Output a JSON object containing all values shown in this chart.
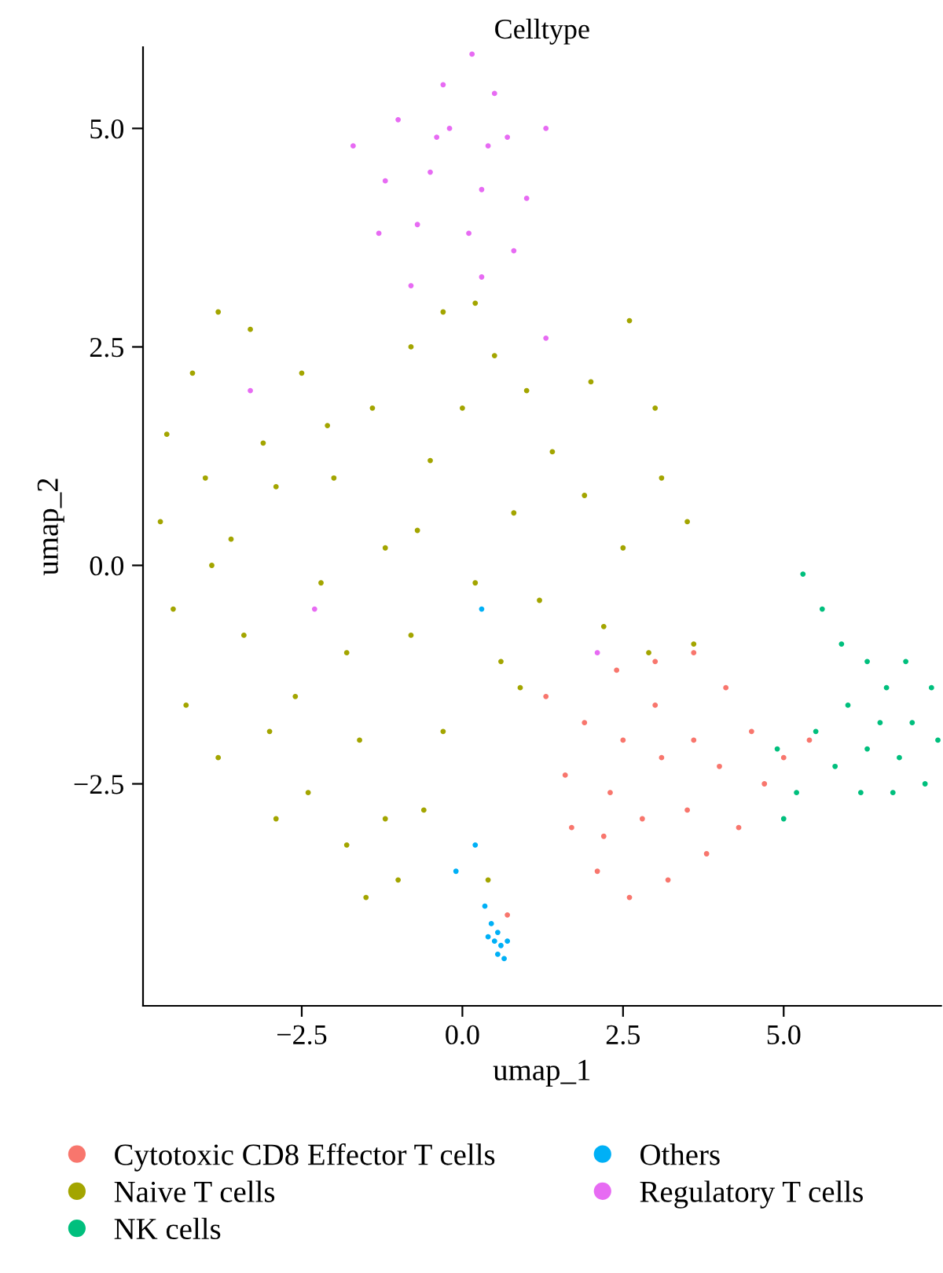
{
  "chart_data": {
    "type": "scatter",
    "title": "Celltype",
    "xlabel": "umap_1",
    "ylabel": "umap_2",
    "xlim": [
      -4.97,
      7.45
    ],
    "ylim": [
      -5.04,
      5.93
    ],
    "xticks": [
      {
        "value": -2.5,
        "label": "−2.5"
      },
      {
        "value": 0,
        "label": "0.0"
      },
      2.5,
      {
        "value": 5,
        "label": "5.0"
      }
    ],
    "yticks": [
      {
        "value": -2.5,
        "label": "−2.5"
      },
      {
        "value": 0,
        "label": "0.0"
      },
      2.5,
      {
        "value": 5,
        "label": "5.0"
      }
    ],
    "grid": false,
    "legend": "bottom",
    "marker": "circle",
    "series": [
      {
        "name": "Cytotoxic CD8 Effector T cells",
        "color": "#f8766d",
        "x": [
          2.4,
          3.0,
          3.6,
          4.1,
          4.5,
          4.7,
          4.3,
          3.8,
          3.2,
          2.6,
          2.1,
          1.7,
          1.6,
          1.9,
          2.5,
          3.1,
          3.6,
          3.5,
          2.8,
          2.3,
          3.0,
          4.0,
          5.0,
          2.2,
          5.4,
          0.7,
          1.3
        ],
        "values": [
          -1.2,
          -1.1,
          -1.0,
          -1.4,
          -1.9,
          -2.5,
          -3.0,
          -3.3,
          -3.6,
          -3.8,
          -3.5,
          -3.0,
          -2.4,
          -1.8,
          -2.0,
          -2.2,
          -2.0,
          -2.8,
          -2.9,
          -2.6,
          -1.6,
          -2.3,
          -2.2,
          -3.1,
          -2.0,
          -4.0,
          -1.5
        ]
      },
      {
        "name": "Naive T cells",
        "color": "#a3a500",
        "x": [
          -3.8,
          -3.3,
          -4.2,
          -4.6,
          -4.7,
          -4.5,
          -4.3,
          -3.8,
          -2.9,
          -2.4,
          -1.8,
          -1.5,
          -1.0,
          -1.2,
          -1.6,
          -2.6,
          -3.4,
          -3.6,
          -3.1,
          -2.5,
          -2.0,
          -1.4,
          -0.8,
          -0.3,
          0.2,
          0.5,
          -0.5,
          -1.2,
          -2.2,
          -1.8,
          -0.8,
          0.2,
          0.8,
          1.4,
          2.0,
          2.6,
          3.0,
          3.1,
          3.5,
          2.5,
          1.9,
          1.2,
          0.9,
          0.6,
          -0.3,
          -0.6,
          2.2,
          2.9,
          3.6,
          -2.9,
          -3.9,
          -4.0,
          -0.7,
          0.0,
          1.0,
          0.4,
          -3.0,
          -2.1
        ],
        "values": [
          2.9,
          2.7,
          2.2,
          1.5,
          0.5,
          -0.5,
          -1.6,
          -2.2,
          -2.9,
          -2.6,
          -3.2,
          -3.8,
          -3.6,
          -2.9,
          -2.0,
          -1.5,
          -0.8,
          0.3,
          1.4,
          2.2,
          1.0,
          1.8,
          2.5,
          2.9,
          3.0,
          2.4,
          1.2,
          0.2,
          -0.2,
          -1.0,
          -0.8,
          -0.2,
          0.6,
          1.3,
          2.1,
          2.8,
          1.8,
          1.0,
          0.5,
          0.2,
          0.8,
          -0.4,
          -1.4,
          -1.1,
          -1.9,
          -2.8,
          -0.7,
          -1.0,
          -0.9,
          0.9,
          0.0,
          1.0,
          0.4,
          1.8,
          2.0,
          -3.6,
          -1.9,
          1.6
        ]
      },
      {
        "name": "NK cells",
        "color": "#00bf7d",
        "x": [
          5.3,
          5.6,
          5.9,
          6.3,
          6.9,
          7.3,
          7.4,
          7.2,
          6.7,
          6.2,
          5.8,
          5.5,
          6.0,
          6.5,
          7.0,
          6.8,
          6.3,
          6.6,
          5.2,
          5.0,
          4.9
        ],
        "values": [
          -0.1,
          -0.5,
          -0.9,
          -1.1,
          -1.1,
          -1.4,
          -2.0,
          -2.5,
          -2.6,
          -2.6,
          -2.3,
          -1.9,
          -1.6,
          -1.8,
          -1.8,
          -2.2,
          -2.1,
          -1.4,
          -2.6,
          -2.9,
          -2.1
        ]
      },
      {
        "name": "Others",
        "color": "#00b0f6",
        "x": [
          0.45,
          0.55,
          0.6,
          0.5,
          0.65,
          0.55,
          0.7,
          0.4,
          0.35,
          -0.1,
          0.2,
          0.3
        ],
        "values": [
          -4.1,
          -4.2,
          -4.35,
          -4.3,
          -4.5,
          -4.45,
          -4.3,
          -4.25,
          -3.9,
          -3.5,
          -3.2,
          -0.5
        ]
      },
      {
        "name": "Regulatory T cells",
        "color": "#e76bf3",
        "x": [
          0.15,
          -0.3,
          0.5,
          -1.0,
          -0.2,
          0.7,
          1.3,
          -1.7,
          -1.2,
          -0.5,
          0.3,
          1.0,
          -1.3,
          -0.7,
          0.1,
          0.8,
          -0.8,
          0.3,
          -0.4,
          0.4,
          -2.3,
          -3.3,
          1.3,
          2.1
        ],
        "values": [
          5.85,
          5.5,
          5.4,
          5.1,
          5.0,
          4.9,
          5.0,
          4.8,
          4.4,
          4.5,
          4.3,
          4.2,
          3.8,
          3.9,
          3.8,
          3.6,
          3.2,
          3.3,
          4.9,
          4.8,
          -0.5,
          2.0,
          2.6,
          -1.0
        ]
      }
    ]
  }
}
